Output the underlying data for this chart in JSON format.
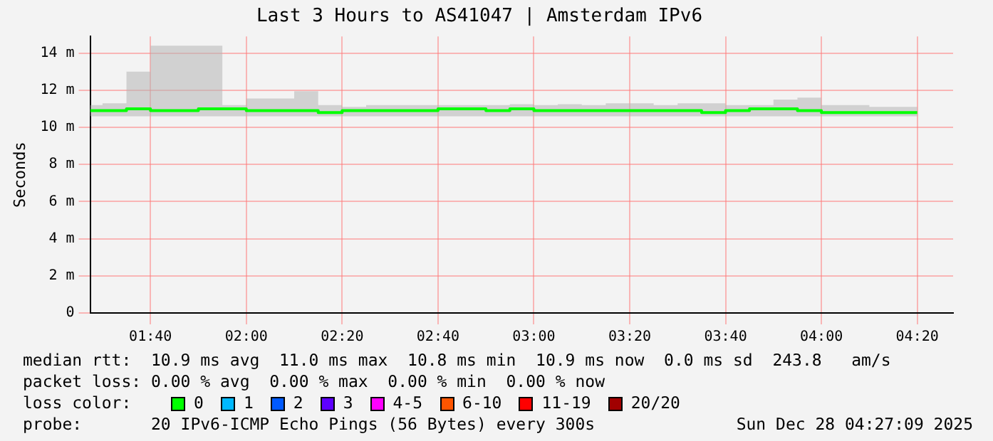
{
  "chart_data": {
    "type": "step",
    "title": "Last 3 Hours to AS41047 | Amsterdam IPv6",
    "ylabel": "Seconds",
    "x": [
      1.457,
      1.5,
      1.5833,
      1.6667,
      1.75,
      1.8333,
      1.9167,
      2,
      2.0833,
      2.1667,
      2.25,
      2.3333,
      2.4167,
      2.5,
      2.5833,
      2.6667,
      2.75,
      2.8333,
      2.9167,
      3,
      3.0833,
      3.1667,
      3.25,
      3.3333,
      3.4167,
      3.5,
      3.5833,
      3.6667,
      3.75,
      3.8333,
      3.9167,
      4,
      4.0833,
      4.1667,
      4.25,
      4.3333
    ],
    "series": [
      {
        "color": "#00ff00",
        "values": [
          10.9,
          10.9,
          10.9,
          11.0,
          10.9,
          10.9,
          11.0,
          11.0,
          10.9,
          10.9,
          10.9,
          10.8,
          10.9,
          10.9,
          10.9,
          10.9,
          11.0,
          11.0,
          10.9,
          11.0,
          10.9,
          10.9,
          10.9,
          10.9,
          10.9,
          10.9,
          10.9,
          10.8,
          10.9,
          11.0,
          11.0,
          10.9,
          10.8,
          10.8,
          10.8,
          10.8
        ],
        "lower": [
          10.6,
          10.6,
          10.6,
          10.6,
          10.6,
          10.6,
          10.6,
          10.6,
          10.6,
          10.6,
          10.6,
          10.6,
          10.6,
          10.6,
          10.6,
          10.6,
          10.6,
          10.6,
          10.6,
          10.6,
          10.6,
          10.6,
          10.6,
          10.6,
          10.6,
          10.6,
          10.6,
          10.6,
          10.6,
          10.6,
          10.6,
          10.6,
          10.6,
          10.6,
          10.6,
          10.6
        ],
        "upper": [
          11.2,
          11.3,
          13.0,
          14.4,
          14.4,
          14.4,
          11.2,
          11.55,
          11.55,
          11.95,
          11.2,
          11.1,
          11.2,
          11.2,
          11.2,
          11.2,
          11.2,
          11.2,
          11.25,
          11.2,
          11.25,
          11.2,
          11.3,
          11.3,
          11.2,
          11.3,
          11.3,
          11.2,
          11.2,
          11.5,
          11.6,
          11.2,
          11.2,
          11.1,
          11.1,
          11.1
        ]
      }
    ],
    "xlim": [
      1.457,
      4.458
    ],
    "xticks": [
      {
        "value": 1.6667,
        "label": "01:40"
      },
      {
        "value": 2,
        "label": "02:00"
      },
      {
        "value": 2.3333,
        "label": "02:20"
      },
      {
        "value": 2.6667,
        "label": "02:40"
      },
      {
        "value": 3,
        "label": "03:00"
      },
      {
        "value": 3.3333,
        "label": "03:20"
      },
      {
        "value": 3.6667,
        "label": "03:40"
      },
      {
        "value": 4,
        "label": "04:00"
      },
      {
        "value": 4.3333,
        "label": "04:20"
      }
    ],
    "ylim": [
      0,
      14.9
    ],
    "yticks": [
      0,
      {
        "value": 2,
        "label": "2 m"
      },
      {
        "value": 4,
        "label": "4 m"
      },
      {
        "value": 6,
        "label": "6 m"
      },
      {
        "value": 8,
        "label": "8 m"
      },
      {
        "value": 10,
        "label": "10 m"
      },
      {
        "value": 12,
        "label": "12 m"
      },
      {
        "value": 14,
        "label": "14 m"
      }
    ],
    "grid": true,
    "annotations": [
      "median rtt:  10.9 ms avg  11.0 ms max  10.8 ms min  10.9 ms now  0.0 ms sd  243.8   am/s",
      "packet loss: 0.00 % avg  0.00 % max  0.00 % min  0.00 % now",
      "loss color:",
      "0",
      "1",
      "2",
      "3",
      "4-5",
      "6-10",
      "11-19",
      "20/20",
      "probe:       20 IPv6-ICMP Echo Pings (56 Bytes) every 300s",
      "Sun Dec 28 04:27:09 2025"
    ]
  }
}
